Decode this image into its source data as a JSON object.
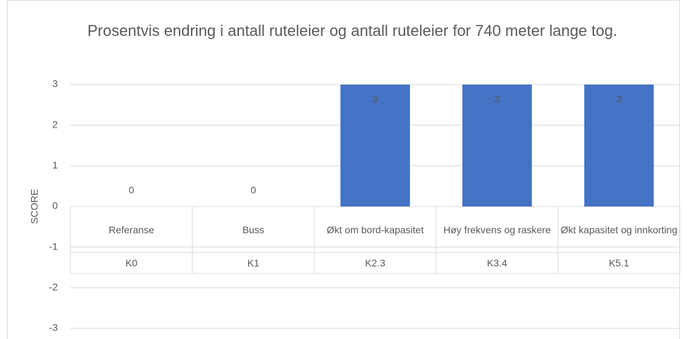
{
  "chart_data": {
    "type": "bar",
    "title": "Prosentvis endring i antall ruteleier og antall ruteleier for 740 meter lange tog.",
    "y_label": "SCORE",
    "categories": [
      "Referanse",
      "Buss",
      "Økt om bord-kapasitet",
      "Høy frekvens og raskere",
      "Økt kapasitet og innkorting"
    ],
    "category_groups": [
      "K0",
      "K1",
      "K2.3",
      "K3.4",
      "K5.1"
    ],
    "values": [
      0,
      0,
      3,
      3,
      3
    ],
    "color": "#4472c4",
    "ylim": [
      -3,
      3
    ],
    "yticks": [
      -3,
      -2,
      -1,
      0,
      1,
      2,
      3
    ],
    "grid": true
  }
}
